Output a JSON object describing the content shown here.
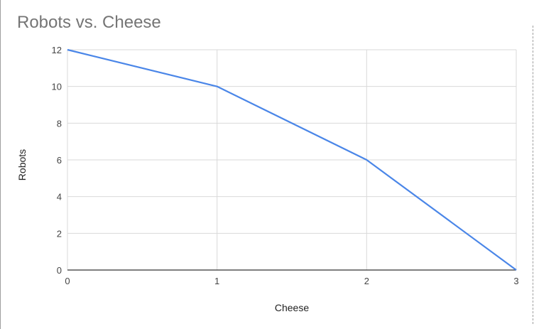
{
  "chart_data": {
    "type": "line",
    "title": "Robots vs. Cheese",
    "xlabel": "Cheese",
    "ylabel": "Robots",
    "xlim": [
      0,
      3
    ],
    "ylim": [
      0,
      12
    ],
    "x_ticks": [
      0,
      1,
      2,
      3
    ],
    "y_ticks": [
      0,
      2,
      4,
      6,
      8,
      10,
      12
    ],
    "grid": true,
    "legend": "none",
    "series": [
      {
        "x": [
          0,
          1,
          2,
          3
        ],
        "values": [
          12,
          10,
          6,
          0
        ],
        "color": "#4a86e8"
      }
    ]
  }
}
